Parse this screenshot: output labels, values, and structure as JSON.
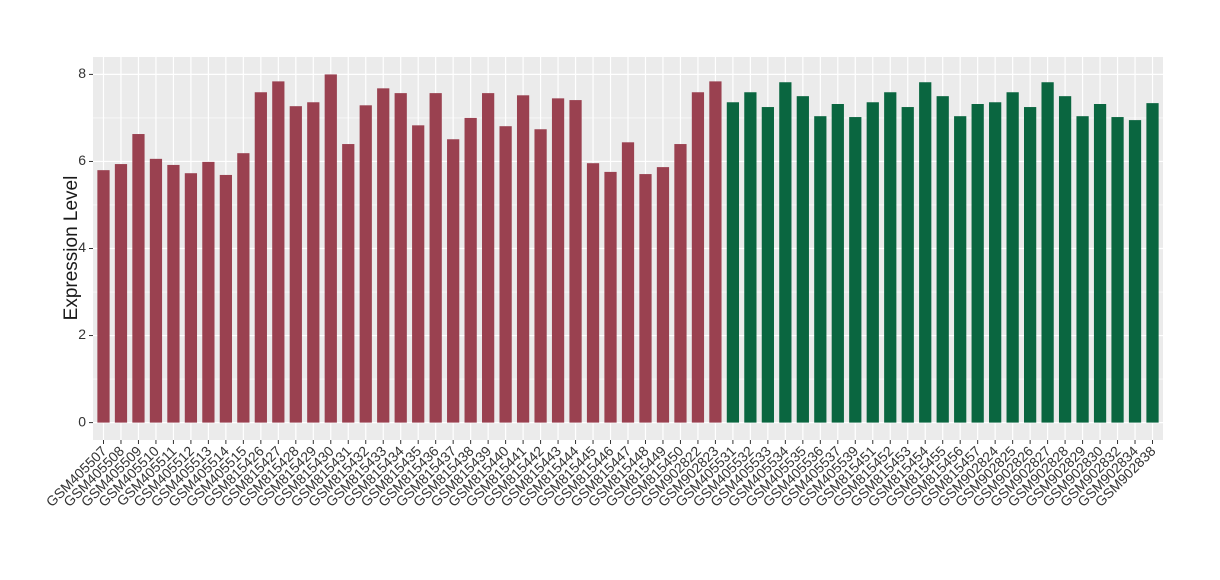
{
  "chart_data": {
    "type": "bar",
    "y_label": "Expression Level",
    "categories": [
      "GSM405507",
      "GSM405508",
      "GSM405509",
      "GSM405510",
      "GSM405511",
      "GSM405512",
      "GSM405513",
      "GSM405514",
      "GSM405515",
      "GSM815426",
      "GSM815427",
      "GSM815428",
      "GSM815429",
      "GSM815430",
      "GSM815431",
      "GSM815432",
      "GSM815433",
      "GSM815434",
      "GSM815435",
      "GSM815436",
      "GSM815437",
      "GSM815438",
      "GSM815439",
      "GSM815440",
      "GSM815441",
      "GSM815442",
      "GSM815443",
      "GSM815444",
      "GSM815445",
      "GSM815446",
      "GSM815447",
      "GSM815448",
      "GSM815449",
      "GSM815450",
      "GSM902822",
      "GSM902823",
      "GSM405531",
      "GSM405532",
      "GSM405533",
      "GSM405534",
      "GSM405535",
      "GSM405536",
      "GSM405537",
      "GSM405539",
      "GSM815451",
      "GSM815452",
      "GSM815453",
      "GSM815454",
      "GSM815455",
      "GSM815456",
      "GSM815457",
      "GSM902824",
      "GSM902825",
      "GSM902826",
      "GSM902827",
      "GSM902828",
      "GSM902829",
      "GSM902830",
      "GSM902832",
      "GSM902834",
      "GSM902838"
    ],
    "values": [
      5.8,
      5.94,
      6.63,
      6.06,
      5.92,
      5.73,
      5.99,
      5.69,
      6.19,
      7.59,
      7.84,
      7.27,
      7.36,
      8.0,
      6.4,
      7.29,
      7.68,
      7.57,
      6.83,
      7.57,
      6.51,
      7.0,
      7.57,
      6.81,
      7.52,
      6.74,
      7.45,
      7.41,
      5.96,
      5.76,
      6.44,
      5.71,
      5.87,
      6.4,
      7.59,
      7.84,
      7.36,
      7.59,
      7.25,
      7.82,
      7.5,
      7.04,
      7.32,
      7.02,
      7.36,
      7.59,
      7.25,
      7.82,
      7.5,
      7.04,
      7.32,
      7.36,
      7.59,
      7.25,
      7.82,
      7.5,
      7.04,
      7.32,
      7.02,
      6.95,
      7.34
    ],
    "colors": [
      "#9a4150",
      "#9a4150",
      "#9a4150",
      "#9a4150",
      "#9a4150",
      "#9a4150",
      "#9a4150",
      "#9a4150",
      "#9a4150",
      "#9a4150",
      "#9a4150",
      "#9a4150",
      "#9a4150",
      "#9a4150",
      "#9a4150",
      "#9a4150",
      "#9a4150",
      "#9a4150",
      "#9a4150",
      "#9a4150",
      "#9a4150",
      "#9a4150",
      "#9a4150",
      "#9a4150",
      "#9a4150",
      "#9a4150",
      "#9a4150",
      "#9a4150",
      "#9a4150",
      "#9a4150",
      "#9a4150",
      "#9a4150",
      "#9a4150",
      "#9a4150",
      "#9a4150",
      "#9a4150",
      "#0a6640",
      "#0a6640",
      "#0a6640",
      "#0a6640",
      "#0a6640",
      "#0a6640",
      "#0a6640",
      "#0a6640",
      "#0a6640",
      "#0a6640",
      "#0a6640",
      "#0a6640",
      "#0a6640",
      "#0a6640",
      "#0a6640",
      "#0a6640",
      "#0a6640",
      "#0a6640",
      "#0a6640",
      "#0a6640",
      "#0a6640",
      "#0a6640",
      "#0a6640",
      "#0a6640",
      "#0a6640"
    ],
    "ylim": [
      -0.4,
      8.4
    ],
    "yticks": [
      0,
      2,
      4,
      6,
      8
    ],
    "grid": true
  }
}
